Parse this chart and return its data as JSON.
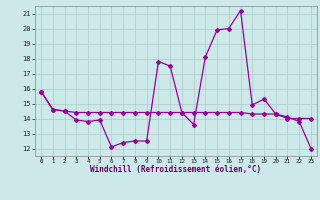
{
  "hours": [
    0,
    1,
    2,
    3,
    4,
    5,
    6,
    7,
    8,
    9,
    10,
    11,
    12,
    13,
    14,
    15,
    16,
    17,
    18,
    19,
    20,
    21,
    22,
    23
  ],
  "temp": [
    15.8,
    14.6,
    14.5,
    13.9,
    13.8,
    13.9,
    12.1,
    12.4,
    12.5,
    12.5,
    17.8,
    17.5,
    14.4,
    13.6,
    18.1,
    19.9,
    20.0,
    21.2,
    14.9,
    15.3,
    14.3,
    14.1,
    13.8,
    12.0
  ],
  "windchill": [
    15.8,
    14.6,
    14.5,
    14.4,
    14.4,
    14.4,
    14.4,
    14.4,
    14.4,
    14.4,
    14.4,
    14.4,
    14.4,
    14.4,
    14.4,
    14.4,
    14.4,
    14.4,
    14.3,
    14.3,
    14.3,
    14.0,
    14.0,
    14.0
  ],
  "line_color": "#990099",
  "bg_color": "#cce8e8",
  "grid_color": "#aacccc",
  "xlabel": "Windchill (Refroidissement éolien,°C)",
  "ylim": [
    11.5,
    21.5
  ],
  "yticks": [
    12,
    13,
    14,
    15,
    16,
    17,
    18,
    19,
    20,
    21
  ],
  "xlim": [
    -0.5,
    23.5
  ]
}
